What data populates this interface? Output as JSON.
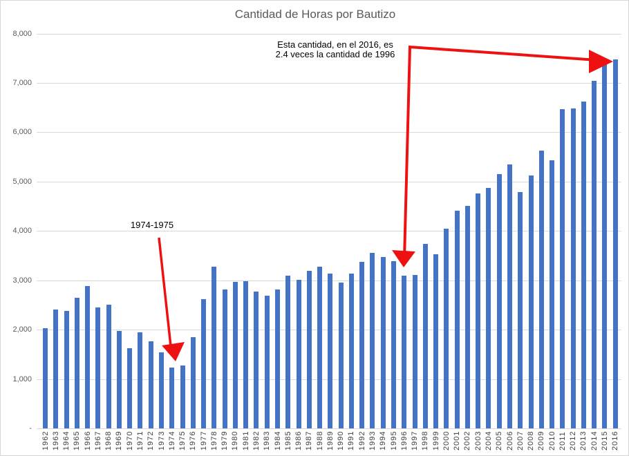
{
  "title": "Cantidad de Horas por Bautizo",
  "annotations": {
    "range_label": "1974-1975",
    "callout_line1": "Esta cantidad, en el 2016, es",
    "callout_line2": "2.4 veces la cantidad de 1996"
  },
  "colors": {
    "bar": "#4472C4",
    "gridline": "#D9D9D9",
    "axis_text": "#595959",
    "category_text": "#404040",
    "title_text": "#595959",
    "annotation_arrow": "#FF0000",
    "annotation_text": "#000000"
  },
  "chart_data": {
    "type": "bar",
    "title": "Cantidad de Horas por Bautizo",
    "xlabel": "",
    "ylabel": "",
    "ylim": [
      0,
      8000
    ],
    "ytick_interval": 1000,
    "ytick_labels": [
      "-",
      "1,000",
      "2,000",
      "3,000",
      "4,000",
      "5,000",
      "6,000",
      "7,000",
      "8,000"
    ],
    "grid": true,
    "legend": false,
    "categories": [
      1962,
      1963,
      1964,
      1965,
      1966,
      1967,
      1968,
      1969,
      1970,
      1971,
      1972,
      1973,
      1974,
      1975,
      1976,
      1977,
      1978,
      1979,
      1980,
      1981,
      1982,
      1983,
      1984,
      1985,
      1986,
      1987,
      1988,
      1989,
      1990,
      1991,
      1992,
      1993,
      1994,
      1995,
      1996,
      1997,
      1998,
      1999,
      2000,
      2001,
      2002,
      2003,
      2004,
      2005,
      2006,
      2007,
      2008,
      2009,
      2010,
      2011,
      2012,
      2013,
      2014,
      2015,
      2016
    ],
    "values": [
      2030,
      2410,
      2380,
      2650,
      2880,
      2450,
      2500,
      1970,
      1620,
      1940,
      1760,
      1540,
      1230,
      1280,
      1850,
      2620,
      3280,
      2820,
      2970,
      2980,
      2770,
      2690,
      2810,
      3100,
      3010,
      3190,
      3280,
      3140,
      2950,
      3140,
      3380,
      3550,
      3470,
      3390,
      3100,
      3110,
      3740,
      3530,
      4040,
      4410,
      4510,
      4760,
      4870,
      5150,
      5350,
      4790,
      5130,
      5630,
      5430,
      6470,
      6480,
      6620,
      7040,
      7420,
      7480
    ]
  }
}
